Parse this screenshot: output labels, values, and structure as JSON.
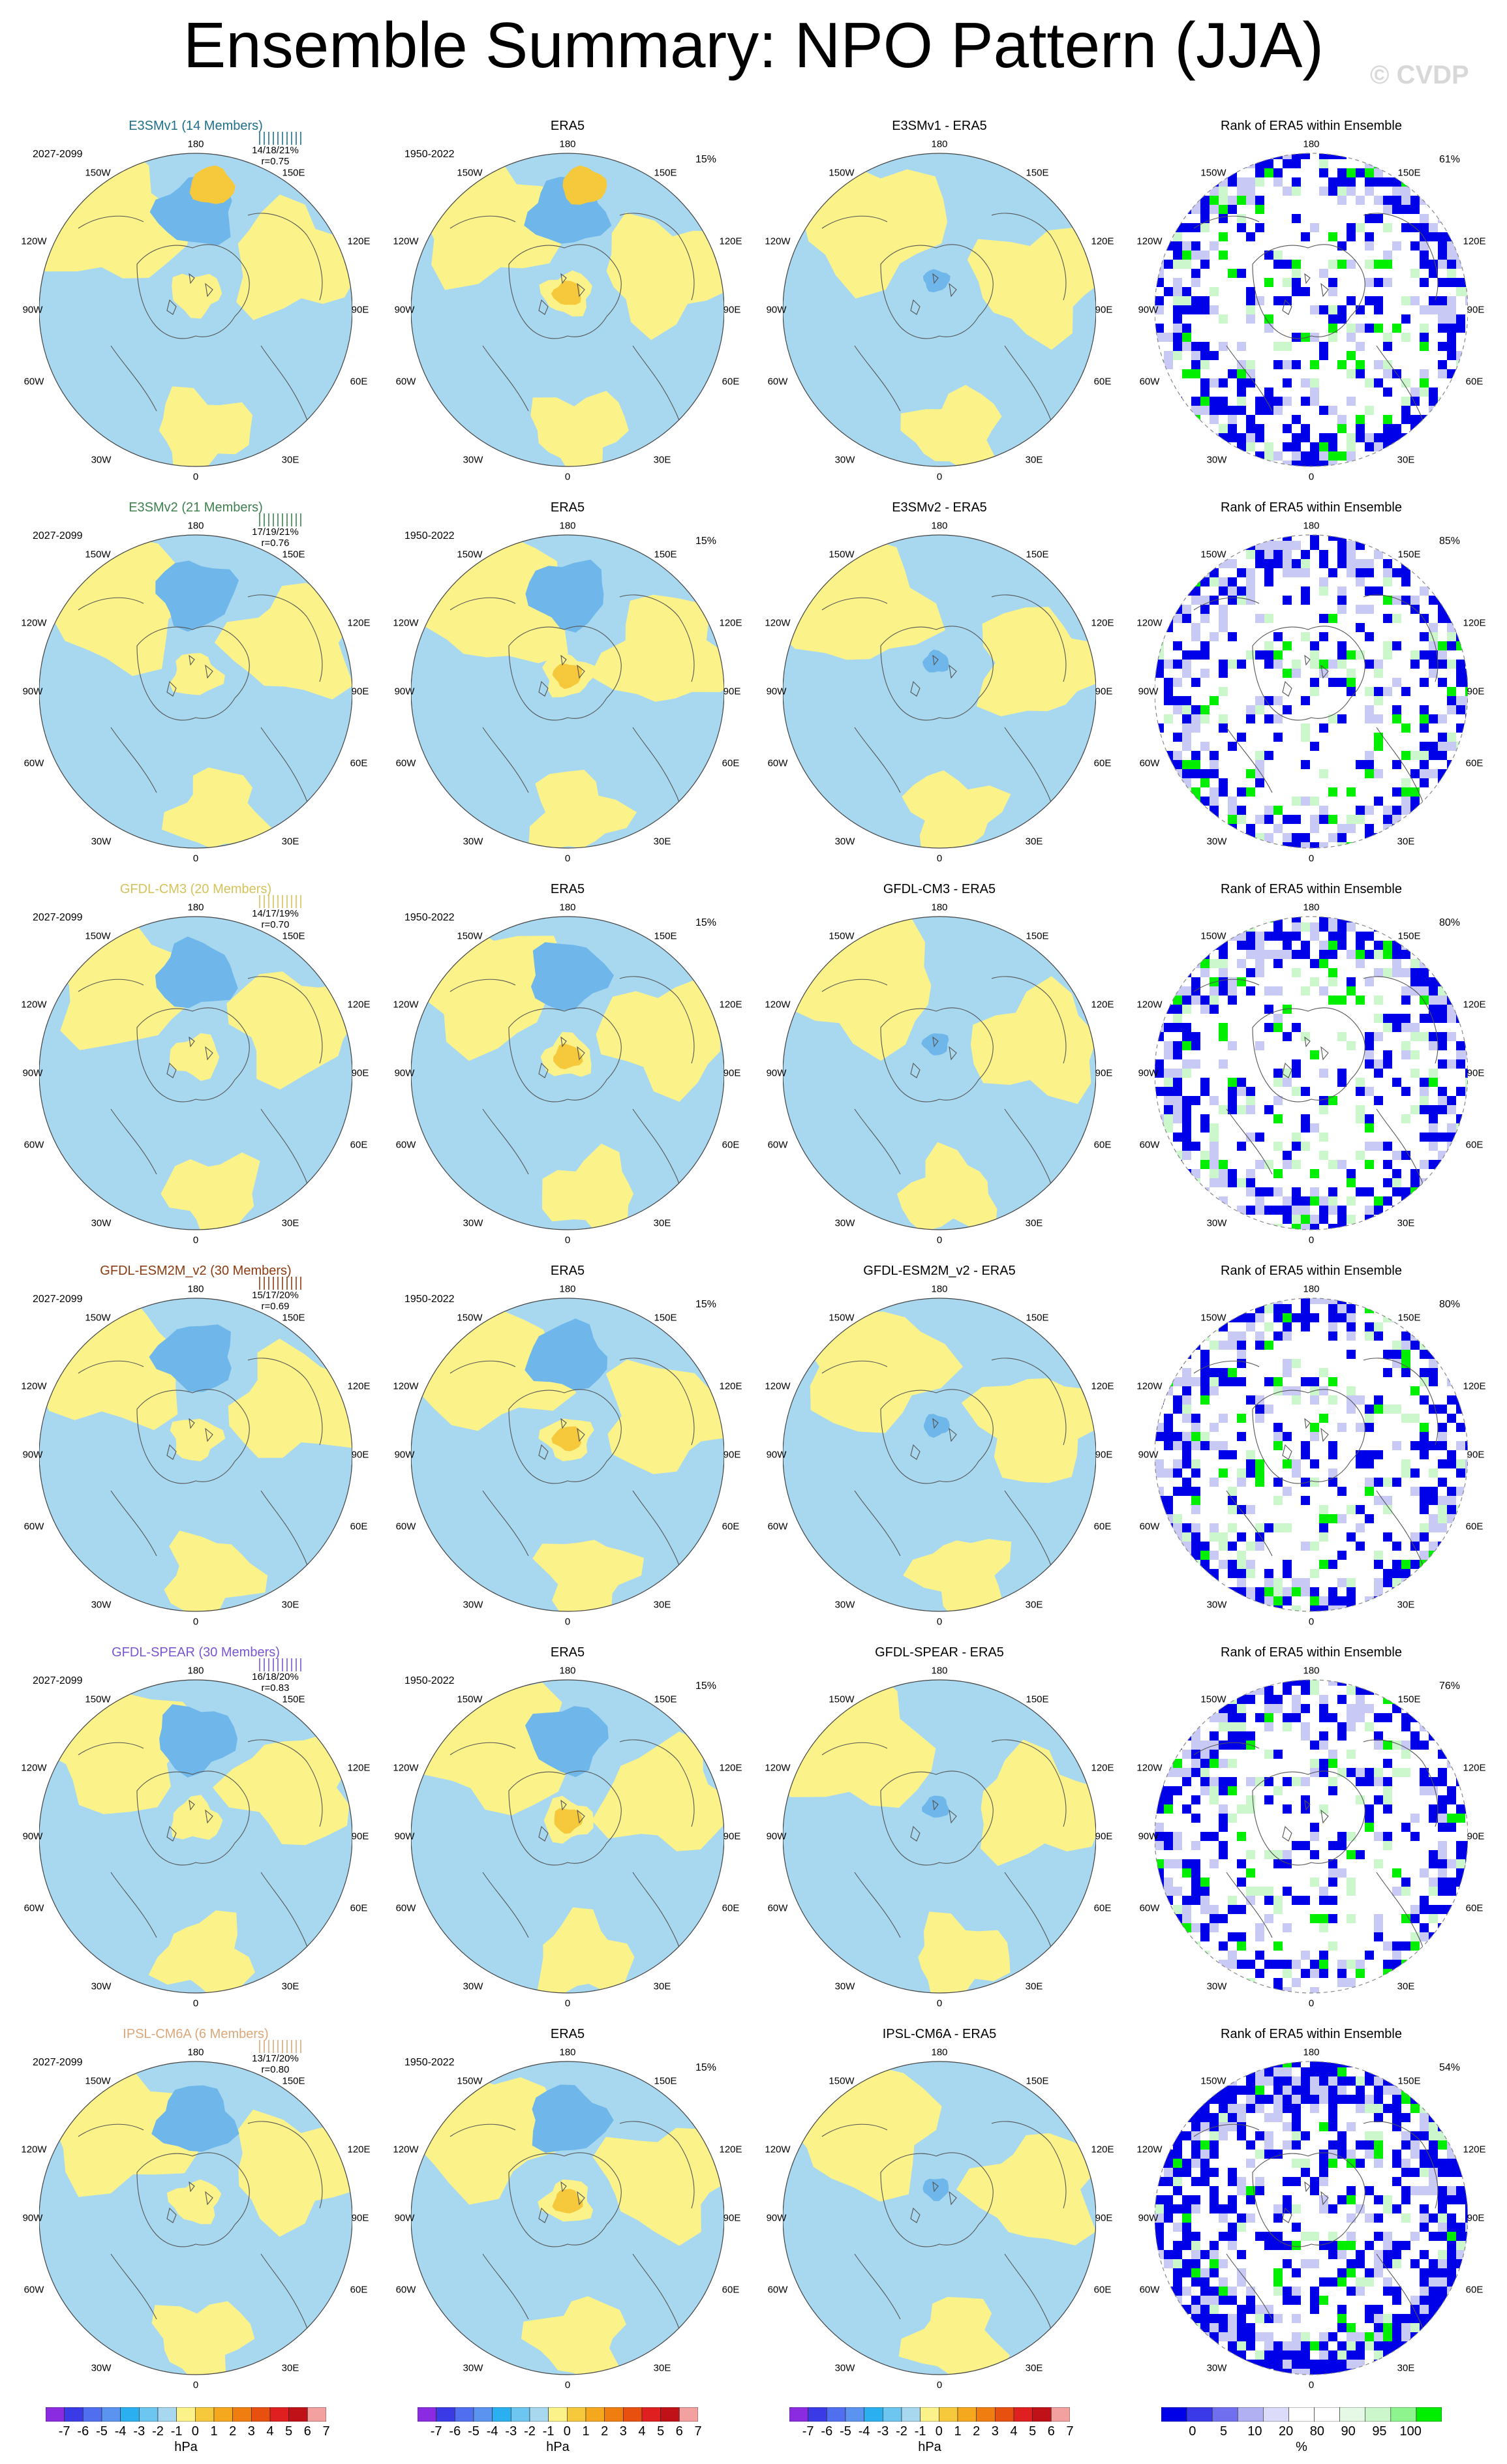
{
  "title": "Ensemble Summary: NPO Pattern (JJA)",
  "watermark": "© CVDP",
  "colors": {
    "ocean_blue": "#a8d8ef",
    "neg_mid": "#6fb7ea",
    "neg_strong": "#3c8fe0",
    "pos_yellow": "#fbf38a",
    "pos_mid": "#f5c93b",
    "pos_strong": "#f0a81e",
    "rank_blue": "#0000e8",
    "rank_midblue": "#6f6ff0",
    "rank_lightblue": "#c9c9f6",
    "rank_green": "#00ee00",
    "rank_lightgreen": "#ccf7cc"
  },
  "lon_labels": {
    "top": "180",
    "bottom": "0",
    "upper_left": "150W",
    "upper_right": "150E",
    "left_upper": "120W",
    "right_upper": "120E",
    "left": "90W",
    "right": "90E",
    "left_lower": "60W",
    "right_lower": "60E",
    "lower_left": "30W",
    "lower_right": "30E"
  },
  "rows": [
    {
      "model": "E3SMv1 (14 Members)",
      "model_color": "#1f6f8b",
      "period": "2027-2099",
      "stats1": "14/18/21%",
      "stats2": "r=0.75",
      "obs_title": "ERA5",
      "obs_period": "1950-2022",
      "obs_pct": "15%",
      "diff_title": "E3SMv1 - ERA5",
      "rank_title": "Rank of ERA5 within Ensemble",
      "rank_pct": "61%"
    },
    {
      "model": "E3SMv2 (21 Members)",
      "model_color": "#3d7f4d",
      "period": "2027-2099",
      "stats1": "17/19/21%",
      "stats2": "r=0.76",
      "obs_title": "ERA5",
      "obs_period": "1950-2022",
      "obs_pct": "15%",
      "diff_title": "E3SMv2 - ERA5",
      "rank_title": "Rank of ERA5 within Ensemble",
      "rank_pct": "85%"
    },
    {
      "model": "GFDL-CM3 (20 Members)",
      "model_color": "#d6c25a",
      "period": "2027-2099",
      "stats1": "14/17/19%",
      "stats2": "r=0.70",
      "obs_title": "ERA5",
      "obs_period": "1950-2022",
      "obs_pct": "15%",
      "diff_title": "GFDL-CM3 - ERA5",
      "rank_title": "Rank of ERA5 within Ensemble",
      "rank_pct": "80%"
    },
    {
      "model": "GFDL-ESM2M_v2 (30 Members)",
      "model_color": "#8b3a0f",
      "period": "2027-2099",
      "stats1": "15/17/20%",
      "stats2": "r=0.69",
      "obs_title": "ERA5",
      "obs_period": "1950-2022",
      "obs_pct": "15%",
      "diff_title": "GFDL-ESM2M_v2 - ERA5",
      "rank_title": "Rank of ERA5 within Ensemble",
      "rank_pct": "80%"
    },
    {
      "model": "GFDL-SPEAR (30 Members)",
      "model_color": "#7a55d0",
      "period": "2027-2099",
      "stats1": "16/18/20%",
      "stats2": "r=0.83",
      "obs_title": "ERA5",
      "obs_period": "1950-2022",
      "obs_pct": "15%",
      "diff_title": "GFDL-SPEAR - ERA5",
      "rank_title": "Rank of ERA5 within Ensemble",
      "rank_pct": "76%"
    },
    {
      "model": "IPSL-CM6A (6 Members)",
      "model_color": "#d9a87a",
      "period": "2027-2099",
      "stats1": "13/17/20%",
      "stats2": "r=0.80",
      "obs_title": "ERA5",
      "obs_period": "1950-2022",
      "obs_pct": "15%",
      "diff_title": "IPSL-CM6A - ERA5",
      "rank_title": "Rank of ERA5 within Ensemble",
      "rank_pct": "54%"
    }
  ],
  "colorbar_hpa": {
    "colors": [
      "#8a2be2",
      "#3a3ae6",
      "#4f6ff0",
      "#5a93f0",
      "#2ab0f0",
      "#6cc6f0",
      "#a8d8ef",
      "#fbf38a",
      "#f5c93b",
      "#f5a81e",
      "#f07d10",
      "#e85010",
      "#e02020",
      "#c01018",
      "#f3a0a0"
    ],
    "labels": [
      "-7",
      "-6",
      "-5",
      "-4",
      "-3",
      "-2",
      "-1",
      "0",
      "1",
      "2",
      "3",
      "4",
      "5",
      "6",
      "7"
    ],
    "units": "hPa"
  },
  "colorbar_rank": {
    "colors": [
      "#0000e8",
      "#3a3ae8",
      "#6f6ff0",
      "#b0b0f3",
      "#dcdcfa",
      "#ffffff",
      "#ffffff",
      "#e6f9e6",
      "#ccf7cc",
      "#8ef58e",
      "#00ee00"
    ],
    "labels": [
      "0",
      "5",
      "10",
      "20",
      "80",
      "90",
      "95",
      "100"
    ],
    "units": "%"
  }
}
